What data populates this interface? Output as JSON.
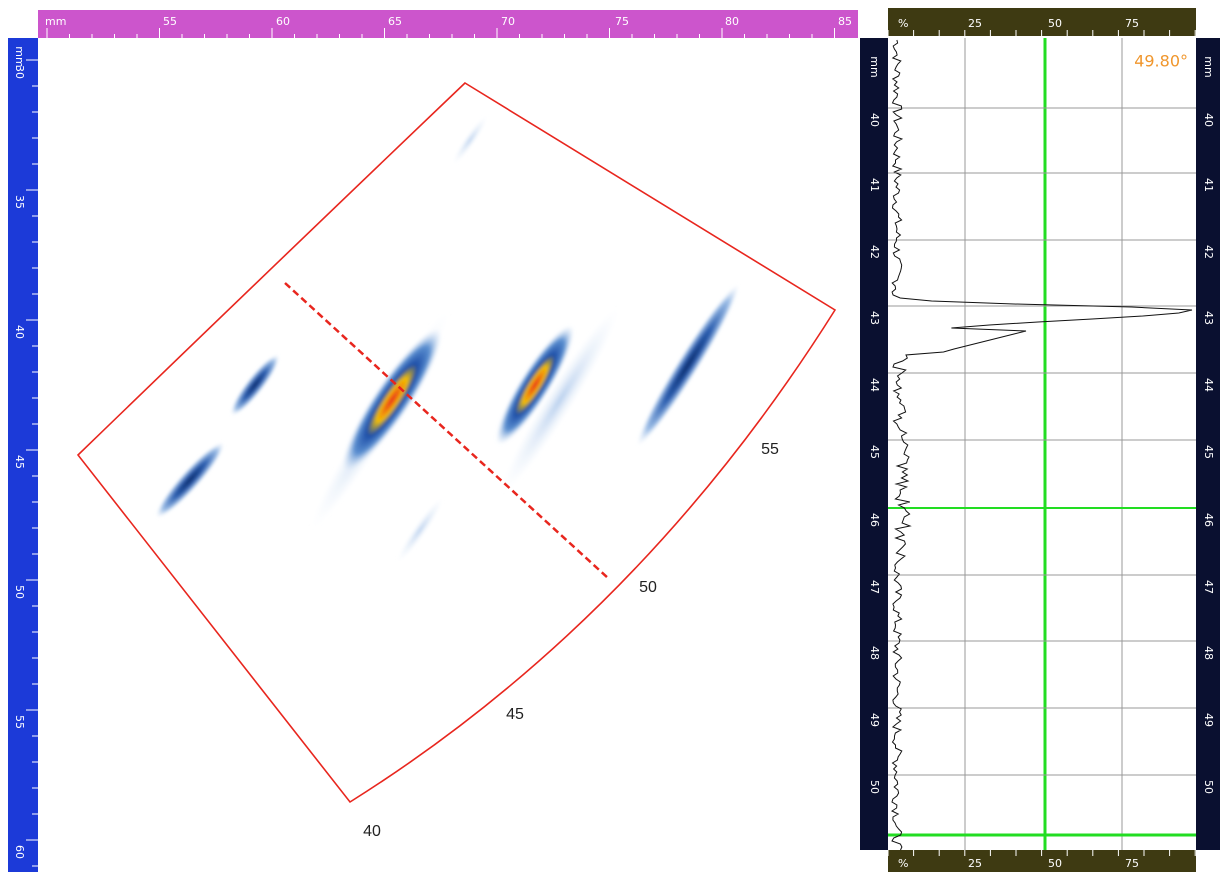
{
  "sscan": {
    "top_ruler": [
      "mm",
      "55",
      "60",
      "65",
      "70",
      "75",
      "80",
      "85"
    ],
    "left_ruler": [
      "mm",
      "30",
      "35",
      "40",
      "45",
      "50",
      "55",
      "60"
    ],
    "angle_labels": [
      "40",
      "45",
      "50",
      "55"
    ]
  },
  "ascan": {
    "angle_readout": "49.80°",
    "top_ruler": [
      "%",
      "25",
      "50",
      "75"
    ],
    "bottom_ruler": [
      "%",
      "25",
      "50",
      "75"
    ],
    "side_ruler": [
      "mm",
      "40",
      "41",
      "42",
      "43",
      "44",
      "45",
      "46",
      "47",
      "48",
      "49",
      "50"
    ]
  }
}
